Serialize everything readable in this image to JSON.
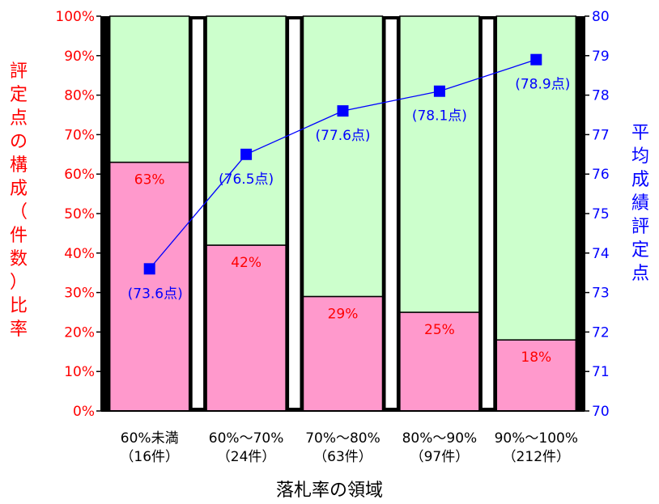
{
  "chart_data": {
    "type": "bar",
    "categories": [
      [
        "60%未満",
        "（16件）"
      ],
      [
        "60%～70%",
        "（24件）"
      ],
      [
        "70%～80%",
        "（63件）"
      ],
      [
        "80%～90%",
        "（97件）"
      ],
      [
        "90%～100%",
        "（212件）"
      ]
    ],
    "series": [
      {
        "values": [
          63,
          42,
          29,
          25,
          18
        ],
        "labels": [
          "63%",
          "42%",
          "29%",
          "25%",
          "18%"
        ],
        "color": "#ff99cc"
      },
      {
        "values": [
          37,
          58,
          71,
          75,
          82
        ],
        "color": "#ccffcc"
      }
    ],
    "line_series": {
      "values": [
        73.6,
        76.5,
        77.6,
        78.1,
        78.9
      ],
      "labels": [
        "(73.6点)",
        "(76.5点)",
        "(77.6点)",
        "(78.1点)",
        "(78.9点)"
      ],
      "color": "#0000ff"
    },
    "ylabel": "評定点の構成（件数）比率",
    "y2label": "平均成績評定点",
    "xlabel": "落札率の領域",
    "ylim": [
      0,
      100
    ],
    "y2lim": [
      70,
      80
    ],
    "yticks": [
      "0%",
      "10%",
      "20%",
      "30%",
      "40%",
      "50%",
      "60%",
      "70%",
      "80%",
      "90%",
      "100%"
    ],
    "y2ticks": [
      "70",
      "71",
      "72",
      "73",
      "74",
      "75",
      "76",
      "77",
      "78",
      "79",
      "80"
    ],
    "stacked": true,
    "background": "#000000",
    "left_axis_color": "#ff0000",
    "right_axis_color": "#0000ff"
  }
}
